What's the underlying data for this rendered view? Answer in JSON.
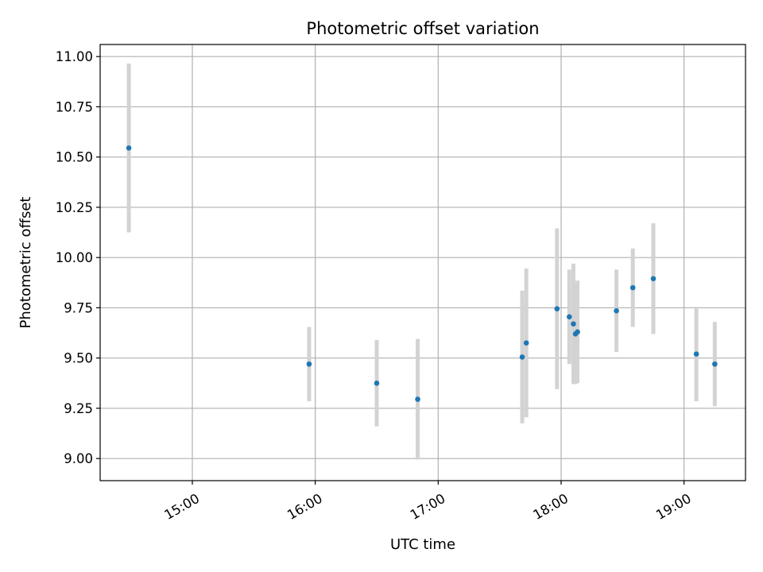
{
  "chart_data": {
    "type": "scatter",
    "title": "Photometric offset variation",
    "xlabel": "UTC time",
    "ylabel": "Photometric offset",
    "xlim": [
      "14:15",
      "19:30"
    ],
    "ylim": [
      8.89,
      11.06
    ],
    "grid": true,
    "x_ticks": [
      "15:00",
      "16:00",
      "17:00",
      "18:00",
      "19:00"
    ],
    "y_ticks": [
      9.0,
      9.25,
      9.5,
      9.75,
      10.0,
      10.25,
      10.5,
      10.75,
      11.0
    ],
    "y_tick_labels": [
      "9.00",
      "9.25",
      "9.50",
      "9.75",
      "10.00",
      "10.25",
      "10.50",
      "10.75",
      "11.00"
    ],
    "colors": {
      "point": "#1f77b4",
      "errorbar": "#d3d3d3",
      "grid": "#b0b0b0"
    },
    "points": [
      {
        "x": "14:29",
        "y": 10.545,
        "yerr": 0.42
      },
      {
        "x": "15:57",
        "y": 9.47,
        "yerr": 0.185
      },
      {
        "x": "16:30",
        "y": 9.375,
        "yerr": 0.215
      },
      {
        "x": "16:50",
        "y": 9.295,
        "yerr": 0.3
      },
      {
        "x": "17:41",
        "y": 9.505,
        "yerr": 0.33
      },
      {
        "x": "17:43",
        "y": 9.575,
        "yerr": 0.37
      },
      {
        "x": "17:58",
        "y": 9.745,
        "yerr": 0.4
      },
      {
        "x": "18:04",
        "y": 9.705,
        "yerr": 0.235
      },
      {
        "x": "18:06",
        "y": 9.67,
        "yerr": 0.3
      },
      {
        "x": "18:07",
        "y": 9.62,
        "yerr": 0.25
      },
      {
        "x": "18:08",
        "y": 9.63,
        "yerr": 0.255
      },
      {
        "x": "18:27",
        "y": 9.735,
        "yerr": 0.205
      },
      {
        "x": "18:35",
        "y": 9.85,
        "yerr": 0.195
      },
      {
        "x": "18:45",
        "y": 9.895,
        "yerr": 0.275
      },
      {
        "x": "19:06",
        "y": 9.52,
        "yerr": 0.235
      },
      {
        "x": "19:15",
        "y": 9.47,
        "yerr": 0.21
      }
    ]
  }
}
